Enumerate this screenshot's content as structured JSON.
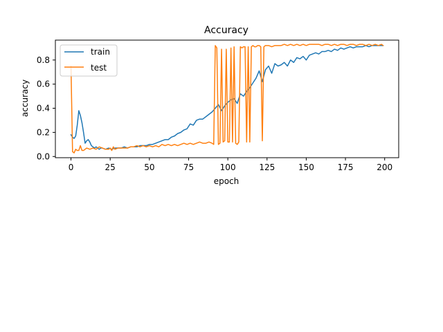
{
  "chart_data": {
    "type": "line",
    "title": "Accuracy",
    "xlabel": "epoch",
    "ylabel": "accuracy",
    "xlim": [
      -9.95,
      208.95
    ],
    "ylim": [
      -0.01,
      0.965
    ],
    "xticks": [
      0,
      25,
      50,
      75,
      100,
      125,
      150,
      175,
      200
    ],
    "yticks": [
      0.0,
      0.2,
      0.4,
      0.6,
      0.8
    ],
    "ytick_labels": [
      "0.0",
      "0.2",
      "0.4",
      "0.6",
      "0.8"
    ],
    "grid": false,
    "legend_position": "upper-left",
    "series": [
      {
        "name": "train",
        "color": "#1f77b4",
        "x": [
          0,
          1,
          2,
          3,
          4,
          5,
          6,
          7,
          8,
          9,
          10,
          11,
          12,
          13,
          14,
          15,
          16,
          17,
          18,
          19,
          20,
          22,
          24,
          26,
          28,
          30,
          32,
          34,
          36,
          38,
          40,
          42,
          44,
          46,
          48,
          50,
          52,
          54,
          56,
          58,
          60,
          62,
          64,
          66,
          68,
          70,
          72,
          74,
          76,
          78,
          80,
          82,
          84,
          86,
          88,
          90,
          92,
          94,
          96,
          98,
          100,
          102,
          104,
          106,
          108,
          110,
          112,
          114,
          116,
          118,
          120,
          122,
          124,
          126,
          128,
          130,
          132,
          134,
          136,
          138,
          140,
          142,
          144,
          146,
          148,
          150,
          152,
          154,
          156,
          158,
          160,
          162,
          164,
          166,
          168,
          170,
          172,
          174,
          176,
          178,
          180,
          182,
          184,
          186,
          188,
          190,
          192,
          194,
          196,
          198,
          199
        ],
        "y": [
          0.18,
          0.16,
          0.15,
          0.17,
          0.26,
          0.38,
          0.34,
          0.28,
          0.2,
          0.11,
          0.13,
          0.14,
          0.12,
          0.09,
          0.08,
          0.07,
          0.08,
          0.07,
          0.06,
          0.07,
          0.07,
          0.06,
          0.07,
          0.06,
          0.07,
          0.07,
          0.07,
          0.08,
          0.07,
          0.08,
          0.08,
          0.08,
          0.09,
          0.09,
          0.09,
          0.1,
          0.1,
          0.11,
          0.12,
          0.13,
          0.14,
          0.14,
          0.16,
          0.17,
          0.19,
          0.2,
          0.22,
          0.23,
          0.27,
          0.26,
          0.3,
          0.31,
          0.31,
          0.33,
          0.35,
          0.37,
          0.4,
          0.43,
          0.38,
          0.42,
          0.45,
          0.47,
          0.48,
          0.44,
          0.52,
          0.5,
          0.54,
          0.57,
          0.61,
          0.65,
          0.71,
          0.62,
          0.72,
          0.75,
          0.69,
          0.77,
          0.75,
          0.76,
          0.78,
          0.75,
          0.8,
          0.78,
          0.82,
          0.81,
          0.83,
          0.8,
          0.84,
          0.85,
          0.86,
          0.85,
          0.87,
          0.87,
          0.88,
          0.87,
          0.89,
          0.88,
          0.9,
          0.89,
          0.9,
          0.91,
          0.9,
          0.91,
          0.91,
          0.91,
          0.92,
          0.91,
          0.92,
          0.92,
          0.92,
          0.92,
          0.92
        ]
      },
      {
        "name": "test",
        "color": "#ff7f0e",
        "x": [
          0,
          1,
          2,
          3,
          4,
          5,
          6,
          7,
          8,
          9,
          10,
          12,
          14,
          16,
          18,
          20,
          22,
          24,
          25,
          26,
          27,
          28,
          30,
          32,
          34,
          36,
          38,
          40,
          42,
          44,
          46,
          48,
          50,
          52,
          54,
          56,
          58,
          60,
          62,
          64,
          66,
          68,
          70,
          72,
          74,
          76,
          78,
          80,
          82,
          84,
          86,
          88,
          90,
          91,
          92,
          93,
          94,
          95,
          96,
          97,
          98,
          99,
          100,
          101,
          102,
          103,
          104,
          105,
          106,
          107,
          108,
          109,
          110,
          111,
          112,
          113,
          114,
          115,
          116,
          117,
          118,
          119,
          120,
          121,
          122,
          123,
          124,
          126,
          128,
          130,
          132,
          134,
          136,
          138,
          140,
          142,
          144,
          146,
          148,
          150,
          152,
          154,
          156,
          158,
          160,
          162,
          164,
          166,
          168,
          170,
          172,
          174,
          176,
          178,
          180,
          182,
          184,
          186,
          188,
          190,
          192,
          194,
          196,
          198,
          199
        ],
        "y": [
          0.75,
          0.04,
          0.03,
          0.06,
          0.05,
          0.05,
          0.09,
          0.05,
          0.05,
          0.06,
          0.07,
          0.06,
          0.07,
          0.06,
          0.08,
          0.07,
          0.06,
          0.06,
          0.07,
          0.05,
          0.08,
          0.06,
          0.07,
          0.07,
          0.07,
          0.07,
          0.08,
          0.08,
          0.09,
          0.08,
          0.09,
          0.08,
          0.09,
          0.08,
          0.09,
          0.08,
          0.1,
          0.09,
          0.1,
          0.09,
          0.1,
          0.09,
          0.1,
          0.11,
          0.1,
          0.11,
          0.1,
          0.11,
          0.12,
          0.11,
          0.11,
          0.12,
          0.11,
          0.1,
          0.92,
          0.9,
          0.1,
          0.11,
          0.89,
          0.12,
          0.13,
          0.89,
          0.12,
          0.12,
          0.9,
          0.12,
          0.91,
          0.11,
          0.1,
          0.12,
          0.91,
          0.9,
          0.91,
          0.91,
          0.12,
          0.91,
          0.12,
          0.91,
          0.92,
          0.91,
          0.91,
          0.92,
          0.92,
          0.91,
          0.13,
          0.91,
          0.92,
          0.92,
          0.91,
          0.92,
          0.92,
          0.92,
          0.93,
          0.92,
          0.93,
          0.92,
          0.93,
          0.92,
          0.93,
          0.92,
          0.93,
          0.93,
          0.93,
          0.93,
          0.92,
          0.93,
          0.93,
          0.92,
          0.93,
          0.92,
          0.93,
          0.93,
          0.92,
          0.93,
          0.93,
          0.92,
          0.93,
          0.93,
          0.92,
          0.93,
          0.92,
          0.93,
          0.92,
          0.93,
          0.92
        ]
      }
    ]
  }
}
